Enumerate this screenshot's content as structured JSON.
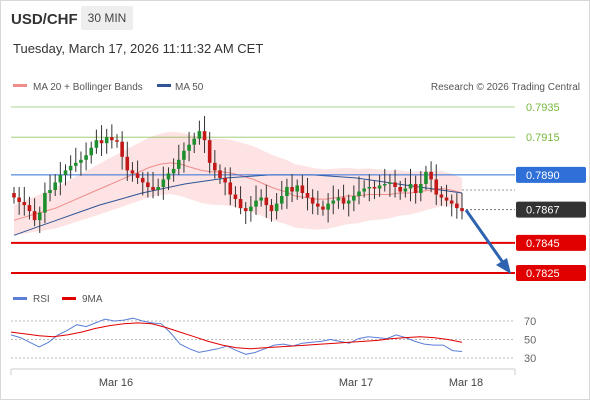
{
  "header": {
    "symbol": "USD/CHF",
    "interval": "30 MIN",
    "datetime": "Tuesday, March 17, 2026 11:11:32 AM CET"
  },
  "legend": {
    "ma20_label": "MA 20 + Bollinger Bands",
    "ma50_label": "MA 50",
    "credit": "Research © 2026 Trading Central",
    "ma20_color": "#f08c8c",
    "ma50_color": "#2f5597"
  },
  "rsi_legend": {
    "rsi_label": "RSI",
    "ma9_label": "9MA",
    "rsi_color": "#5b7fd6",
    "ma9_color": "#e00000"
  },
  "chart_data": [
    {
      "type": "candlestick",
      "title": "USD/CHF",
      "ylim": [
        0.781,
        0.7942
      ],
      "x_labels": [
        "Mar 16",
        "Mar 17",
        "Mar 18"
      ],
      "levels": [
        {
          "value": "0.7935",
          "kind": "resistance",
          "color": "#78b83e"
        },
        {
          "value": "0.7915",
          "kind": "resistance",
          "color": "#78b83e"
        },
        {
          "value": "0.7890",
          "kind": "pivot",
          "color": "#2e6fd8"
        },
        {
          "value": "0.7867",
          "kind": "last-price",
          "color": "#333333"
        },
        {
          "value": "0.7845",
          "kind": "target",
          "color": "#e00000"
        },
        {
          "value": "0.7825",
          "kind": "target",
          "color": "#e00000"
        }
      ],
      "candles_close": [
        0.7875,
        0.7872,
        0.787,
        0.7866,
        0.786,
        0.7865,
        0.7878,
        0.788,
        0.7885,
        0.789,
        0.7893,
        0.7896,
        0.7898,
        0.79,
        0.7903,
        0.7908,
        0.7913,
        0.7911,
        0.7915,
        0.7913,
        0.7912,
        0.7902,
        0.7893,
        0.7891,
        0.7888,
        0.7885,
        0.7882,
        0.788,
        0.7882,
        0.7887,
        0.7891,
        0.7894,
        0.79,
        0.7906,
        0.791,
        0.7914,
        0.7919,
        0.7913,
        0.7898,
        0.7893,
        0.7888,
        0.7885,
        0.7877,
        0.7874,
        0.7868,
        0.7866,
        0.7869,
        0.7873,
        0.7875,
        0.787,
        0.7866,
        0.7871,
        0.7876,
        0.7882,
        0.7879,
        0.7883,
        0.7878,
        0.7875,
        0.7871,
        0.7869,
        0.7867,
        0.7871,
        0.7873,
        0.7875,
        0.7871,
        0.7873,
        0.7876,
        0.7879,
        0.7881,
        0.7882,
        0.7881,
        0.7883,
        0.7884,
        0.7885,
        0.7882,
        0.7879,
        0.7881,
        0.7884,
        0.7878,
        0.7884,
        0.7892,
        0.7887,
        0.7877,
        0.7875,
        0.7873,
        0.7871,
        0.7868,
        0.7866
      ],
      "ma20": [
        0.786,
        0.7862,
        0.7864,
        0.7866,
        0.7868,
        0.7871,
        0.7874,
        0.7877,
        0.788,
        0.7883,
        0.7886,
        0.7889,
        0.7892,
        0.7895,
        0.7897,
        0.7898,
        0.7897,
        0.7895,
        0.7893,
        0.7892,
        0.7892,
        0.7891,
        0.7889,
        0.7887,
        0.7884,
        0.7881,
        0.7879,
        0.7876,
        0.7875,
        0.7874,
        0.7874,
        0.7875,
        0.7876,
        0.7876,
        0.7877,
        0.7877,
        0.7877,
        0.7878,
        0.7878,
        0.7879,
        0.788,
        0.7881,
        0.788,
        0.7878
      ],
      "ma50": [
        0.785,
        0.7855,
        0.786,
        0.7865,
        0.787,
        0.7874,
        0.7878,
        0.7881,
        0.7884,
        0.7886,
        0.7888,
        0.7889,
        0.789,
        0.789,
        0.789,
        0.7889,
        0.7888,
        0.7886,
        0.7884,
        0.7882,
        0.788,
        0.7878
      ]
    },
    {
      "type": "line",
      "title": "RSI",
      "ylim": [
        25,
        78
      ],
      "y_ticks": [
        "70",
        "50",
        "30"
      ],
      "series": [
        {
          "name": "RSI",
          "values": [
            55,
            52,
            47,
            42,
            47,
            55,
            60,
            66,
            64,
            68,
            72,
            70,
            71,
            73,
            70,
            68,
            67,
            57,
            45,
            40,
            36,
            38,
            40,
            43,
            38,
            34,
            36,
            40,
            44,
            45,
            43,
            46,
            47,
            48,
            50,
            48,
            46,
            51,
            53,
            52,
            51,
            55,
            52,
            48,
            45,
            44,
            44,
            38,
            37
          ]
        },
        {
          "name": "9MA",
          "values": [
            58,
            56,
            54,
            53,
            55,
            58,
            62,
            65,
            67,
            68,
            67,
            63,
            58,
            53,
            48,
            44,
            41,
            40,
            41,
            42,
            43,
            44,
            45,
            46,
            47,
            48,
            49,
            51,
            52,
            53,
            52,
            50,
            47
          ]
        }
      ]
    }
  ]
}
